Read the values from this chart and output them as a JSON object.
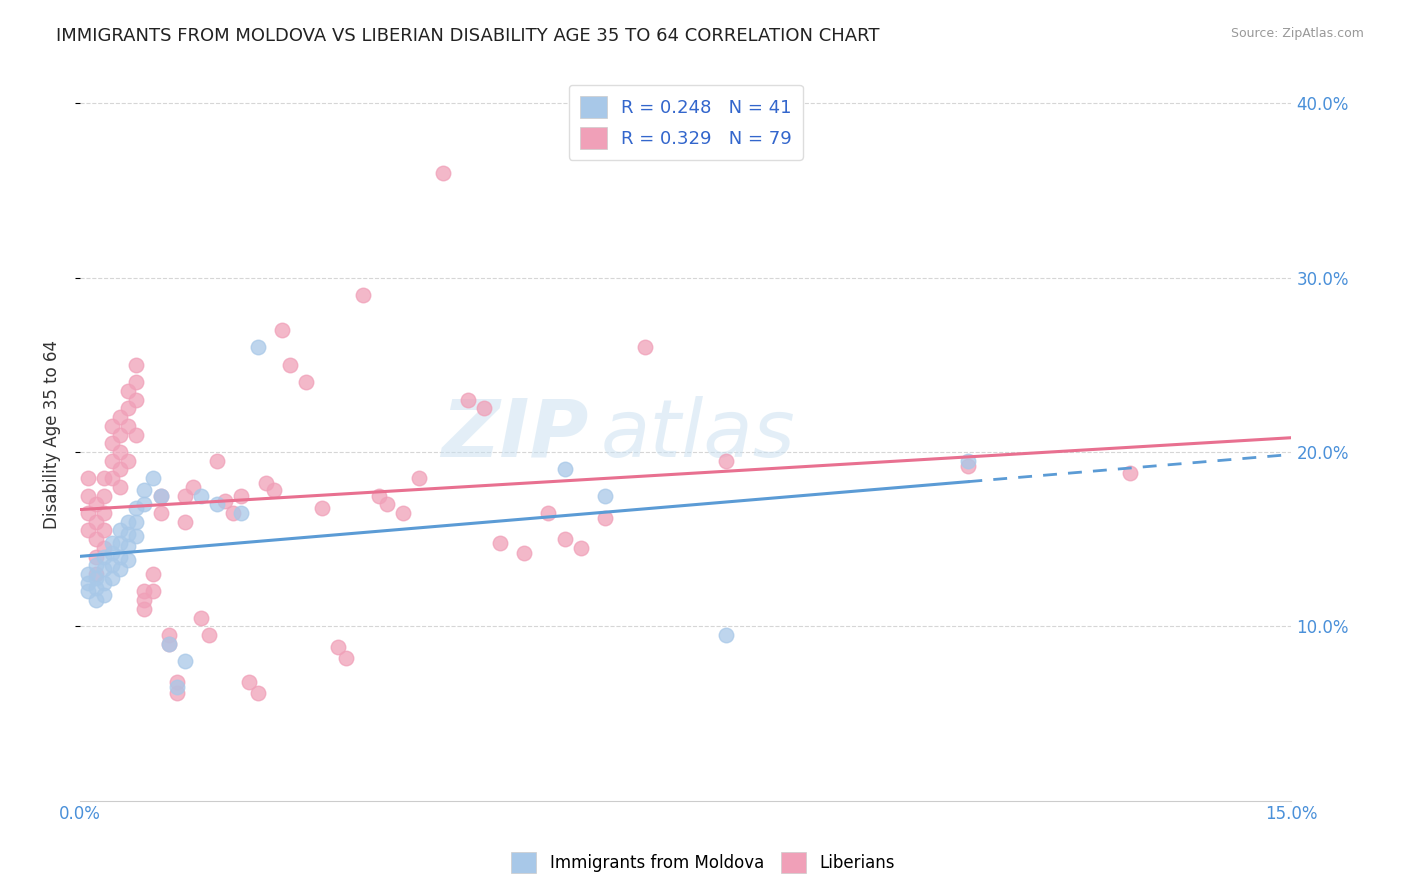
{
  "title": "IMMIGRANTS FROM MOLDOVA VS LIBERIAN DISABILITY AGE 35 TO 64 CORRELATION CHART",
  "source": "Source: ZipAtlas.com",
  "ylabel": "Disability Age 35 to 64",
  "xlim": [
    0.0,
    0.15
  ],
  "ylim": [
    0.0,
    0.42
  ],
  "moldova_R": 0.248,
  "moldova_N": 41,
  "liberian_R": 0.329,
  "liberian_N": 79,
  "moldova_color": "#a8c8e8",
  "liberian_color": "#f0a0b8",
  "moldova_line_color": "#5b9bd5",
  "liberian_line_color": "#e87090",
  "watermark_zip": "ZIP",
  "watermark_atlas": "atlas",
  "moldova_scatter_x": [
    0.001,
    0.001,
    0.001,
    0.002,
    0.002,
    0.002,
    0.002,
    0.003,
    0.003,
    0.003,
    0.003,
    0.004,
    0.004,
    0.004,
    0.004,
    0.005,
    0.005,
    0.005,
    0.005,
    0.006,
    0.006,
    0.006,
    0.006,
    0.007,
    0.007,
    0.007,
    0.008,
    0.008,
    0.009,
    0.01,
    0.011,
    0.012,
    0.013,
    0.015,
    0.017,
    0.02,
    0.022,
    0.06,
    0.065,
    0.08,
    0.11
  ],
  "moldova_scatter_y": [
    0.13,
    0.125,
    0.12,
    0.135,
    0.128,
    0.122,
    0.115,
    0.14,
    0.133,
    0.125,
    0.118,
    0.148,
    0.142,
    0.135,
    0.128,
    0.155,
    0.148,
    0.14,
    0.133,
    0.16,
    0.153,
    0.146,
    0.138,
    0.168,
    0.16,
    0.152,
    0.178,
    0.17,
    0.185,
    0.175,
    0.09,
    0.065,
    0.08,
    0.175,
    0.17,
    0.165,
    0.26,
    0.19,
    0.175,
    0.095,
    0.195
  ],
  "liberian_scatter_x": [
    0.001,
    0.001,
    0.001,
    0.001,
    0.002,
    0.002,
    0.002,
    0.002,
    0.002,
    0.003,
    0.003,
    0.003,
    0.003,
    0.003,
    0.004,
    0.004,
    0.004,
    0.004,
    0.005,
    0.005,
    0.005,
    0.005,
    0.005,
    0.006,
    0.006,
    0.006,
    0.006,
    0.007,
    0.007,
    0.007,
    0.007,
    0.008,
    0.008,
    0.008,
    0.009,
    0.009,
    0.01,
    0.01,
    0.011,
    0.011,
    0.012,
    0.012,
    0.013,
    0.013,
    0.014,
    0.015,
    0.016,
    0.017,
    0.018,
    0.019,
    0.02,
    0.021,
    0.022,
    0.023,
    0.024,
    0.025,
    0.026,
    0.028,
    0.03,
    0.032,
    0.033,
    0.035,
    0.037,
    0.038,
    0.04,
    0.042,
    0.045,
    0.048,
    0.05,
    0.052,
    0.055,
    0.058,
    0.06,
    0.062,
    0.065,
    0.07,
    0.08,
    0.11,
    0.13
  ],
  "liberian_scatter_y": [
    0.185,
    0.175,
    0.165,
    0.155,
    0.17,
    0.16,
    0.15,
    0.14,
    0.13,
    0.185,
    0.175,
    0.165,
    0.155,
    0.145,
    0.215,
    0.205,
    0.195,
    0.185,
    0.22,
    0.21,
    0.2,
    0.19,
    0.18,
    0.235,
    0.225,
    0.215,
    0.195,
    0.25,
    0.24,
    0.23,
    0.21,
    0.12,
    0.115,
    0.11,
    0.13,
    0.12,
    0.175,
    0.165,
    0.095,
    0.09,
    0.068,
    0.062,
    0.175,
    0.16,
    0.18,
    0.105,
    0.095,
    0.195,
    0.172,
    0.165,
    0.175,
    0.068,
    0.062,
    0.182,
    0.178,
    0.27,
    0.25,
    0.24,
    0.168,
    0.088,
    0.082,
    0.29,
    0.175,
    0.17,
    0.165,
    0.185,
    0.36,
    0.23,
    0.225,
    0.148,
    0.142,
    0.165,
    0.15,
    0.145,
    0.162,
    0.26,
    0.195,
    0.192,
    0.188
  ]
}
